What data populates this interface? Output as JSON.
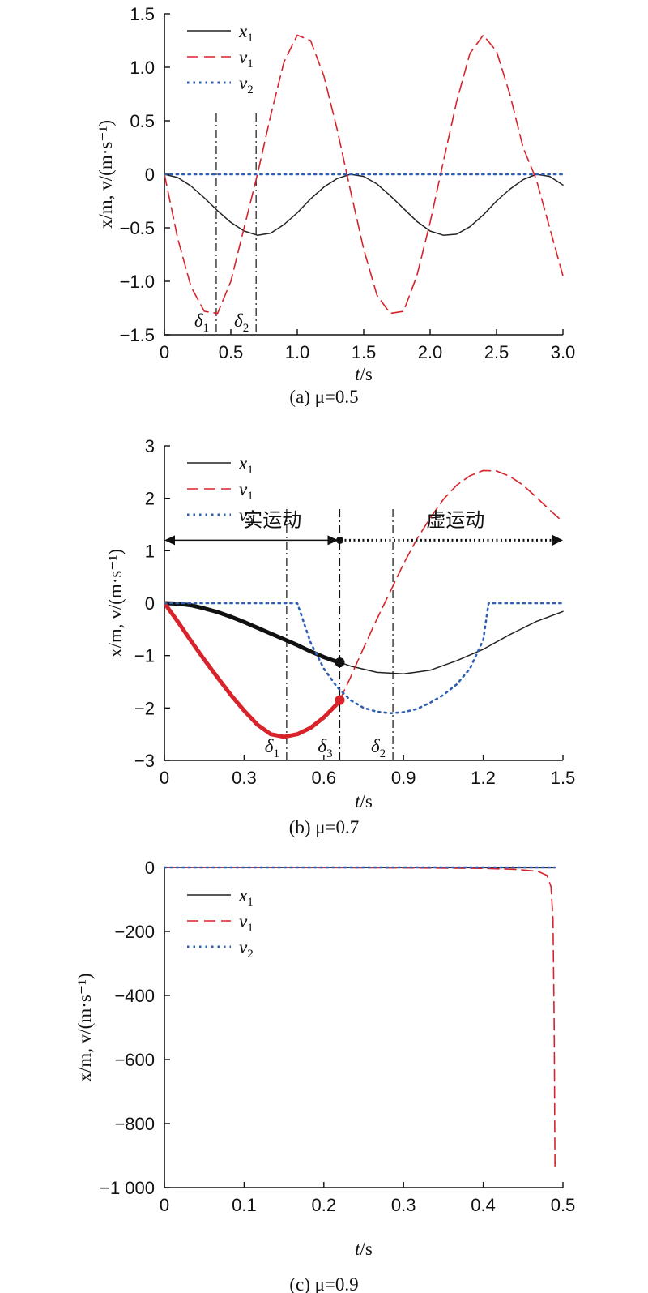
{
  "chart_data": [
    {
      "type": "line",
      "caption": "(a) μ=0.5",
      "xlabel": "t/s",
      "ylabel": "x/m, v/(m·s⁻¹)",
      "xlim": [
        0,
        3.0
      ],
      "ylim": [
        -1.5,
        1.5
      ],
      "xticks": [
        0,
        0.5,
        1.0,
        1.5,
        2.0,
        2.5,
        3.0
      ],
      "xtick_labels": [
        "0",
        "0.5",
        "1.0",
        "1.5",
        "2.0",
        "2.5",
        "3.0"
      ],
      "yticks": [
        -1.5,
        -1.0,
        -0.5,
        0,
        0.5,
        1.0,
        1.5
      ],
      "ytick_labels": [
        "−1.5",
        "−1.0",
        "−0.5",
        "0",
        "0.5",
        "1.0",
        "1.5"
      ],
      "legend_position": "top-left",
      "grid": false,
      "series": [
        {
          "name": "x1",
          "style": "solid",
          "color": "#222222",
          "x": [
            0,
            0.1,
            0.2,
            0.3,
            0.4,
            0.5,
            0.6,
            0.7,
            0.8,
            0.9,
            1.0,
            1.1,
            1.2,
            1.3,
            1.4,
            1.5,
            1.6,
            1.7,
            1.8,
            1.9,
            2.0,
            2.1,
            2.2,
            2.3,
            2.4,
            2.5,
            2.6,
            2.7,
            2.8,
            2.9,
            3.0
          ],
          "y": [
            0,
            -0.03,
            -0.11,
            -0.22,
            -0.34,
            -0.45,
            -0.53,
            -0.57,
            -0.55,
            -0.47,
            -0.36,
            -0.23,
            -0.12,
            -0.04,
            0,
            -0.02,
            -0.09,
            -0.2,
            -0.32,
            -0.44,
            -0.53,
            -0.57,
            -0.56,
            -0.49,
            -0.38,
            -0.25,
            -0.14,
            -0.05,
            0,
            -0.02,
            -0.1
          ]
        },
        {
          "name": "v1",
          "style": "dashed",
          "color": "#d8232a",
          "x": [
            0,
            0.1,
            0.2,
            0.3,
            0.4,
            0.5,
            0.6,
            0.7,
            0.8,
            0.9,
            1.0,
            1.1,
            1.2,
            1.3,
            1.4,
            1.5,
            1.6,
            1.7,
            1.8,
            1.9,
            2.0,
            2.1,
            2.2,
            2.3,
            2.4,
            2.5,
            2.6,
            2.7,
            2.8,
            2.9,
            3.0
          ],
          "y": [
            0,
            -0.6,
            -1.05,
            -1.28,
            -1.3,
            -1.0,
            -0.5,
            0,
            0.55,
            1.05,
            1.3,
            1.25,
            0.92,
            0.42,
            -0.15,
            -0.7,
            -1.13,
            -1.3,
            -1.28,
            -0.95,
            -0.45,
            0.12,
            0.68,
            1.13,
            1.3,
            1.15,
            0.75,
            0.25,
            -0.05,
            -0.5,
            -0.95
          ]
        },
        {
          "name": "v2",
          "style": "dotted",
          "color": "#2f5fb3",
          "x": [
            0,
            3.0
          ],
          "y": [
            0,
            0
          ]
        }
      ],
      "markers": [],
      "vlines": [
        {
          "x": 0.39,
          "label": "δ1"
        },
        {
          "x": 0.69,
          "label": "δ2"
        }
      ]
    },
    {
      "type": "line",
      "caption": "(b) μ=0.7",
      "xlabel": "t/s",
      "ylabel": "x/m, v/(m·s⁻¹)",
      "xlim": [
        0,
        1.5
      ],
      "ylim": [
        -3,
        3
      ],
      "xticks": [
        0,
        0.3,
        0.6,
        0.9,
        1.2,
        1.5
      ],
      "xtick_labels": [
        "0",
        "0.3",
        "0.6",
        "0.9",
        "1.2",
        "1.5"
      ],
      "yticks": [
        -3,
        -2,
        -1,
        0,
        1,
        2,
        3
      ],
      "ytick_labels": [
        "−3",
        "−2",
        "−1",
        "0",
        "1",
        "2",
        "3"
      ],
      "legend_position": "top-left",
      "grid": false,
      "series": [
        {
          "name": "x1 (solid bold)",
          "style": "solid-bold",
          "color": "#111111",
          "x": [
            0,
            0.05,
            0.1,
            0.15,
            0.2,
            0.25,
            0.3,
            0.35,
            0.4,
            0.45,
            0.5,
            0.55,
            0.6,
            0.65,
            0.66
          ],
          "y": [
            0,
            -0.01,
            -0.04,
            -0.1,
            -0.17,
            -0.26,
            -0.36,
            -0.47,
            -0.58,
            -0.69,
            -0.8,
            -0.92,
            -1.03,
            -1.12,
            -1.13
          ]
        },
        {
          "name": "x1 (solid thin)",
          "style": "solid",
          "color": "#222222",
          "x": [
            0.66,
            0.7,
            0.8,
            0.9,
            1.0,
            1.1,
            1.2,
            1.3,
            1.4,
            1.5
          ],
          "y": [
            -1.13,
            -1.2,
            -1.32,
            -1.35,
            -1.28,
            -1.1,
            -0.88,
            -0.6,
            -0.35,
            -0.16
          ]
        },
        {
          "name": "v1 (solid bold)",
          "style": "solid-bold",
          "color": "#d8232a",
          "x": [
            0,
            0.05,
            0.1,
            0.15,
            0.2,
            0.25,
            0.3,
            0.35,
            0.4,
            0.45,
            0.5,
            0.55,
            0.6,
            0.65,
            0.66
          ],
          "y": [
            0,
            -0.35,
            -0.72,
            -1.08,
            -1.42,
            -1.75,
            -2.05,
            -2.32,
            -2.5,
            -2.55,
            -2.5,
            -2.38,
            -2.18,
            -1.92,
            -1.85
          ]
        },
        {
          "name": "v1 (dashed)",
          "style": "dashed",
          "color": "#d8232a",
          "x": [
            0.66,
            0.7,
            0.75,
            0.8,
            0.85,
            0.9,
            0.95,
            1.0,
            1.05,
            1.1,
            1.15,
            1.2,
            1.25,
            1.3,
            1.35,
            1.4,
            1.45,
            1.5
          ],
          "y": [
            -1.85,
            -1.42,
            -0.85,
            -0.3,
            0.22,
            0.75,
            1.22,
            1.62,
            1.98,
            2.25,
            2.43,
            2.53,
            2.52,
            2.42,
            2.25,
            2.02,
            1.78,
            1.55
          ]
        },
        {
          "name": "v2",
          "style": "dotted",
          "color": "#2f5fb3",
          "x": [
            0,
            0.5,
            0.55,
            0.6,
            0.65,
            0.7,
            0.75,
            0.8,
            0.85,
            0.9,
            0.95,
            1.0,
            1.05,
            1.1,
            1.15,
            1.2,
            1.22,
            1.5
          ],
          "y": [
            0,
            0,
            -0.75,
            -1.25,
            -1.6,
            -1.85,
            -2.0,
            -2.07,
            -2.1,
            -2.08,
            -2.02,
            -1.9,
            -1.75,
            -1.55,
            -1.25,
            -0.7,
            0,
            0
          ]
        }
      ],
      "markers": [
        {
          "x": 0.66,
          "y": -1.13,
          "color": "#111111"
        },
        {
          "x": 0.66,
          "y": -1.85,
          "color": "#d8232a"
        }
      ],
      "vlines": [
        {
          "x": 0.46,
          "label": "δ1"
        },
        {
          "x": 0.66,
          "label": "δ3"
        },
        {
          "x": 0.86,
          "label": "δ2"
        }
      ],
      "arrows": {
        "y": 1.2,
        "x_start": 0,
        "x_split": 0.66,
        "x_end": 1.5,
        "left_label": "实运动",
        "right_label": "虚运动"
      }
    },
    {
      "type": "line",
      "caption": "(c) μ=0.9",
      "xlabel": "t/s",
      "ylabel": "x/m, v/(m·s⁻¹)",
      "xlim": [
        0,
        0.5
      ],
      "ylim": [
        -1000,
        0
      ],
      "xticks": [
        0,
        0.1,
        0.2,
        0.3,
        0.4,
        0.5
      ],
      "xtick_labels": [
        "0",
        "0.1",
        "0.2",
        "0.3",
        "0.4",
        "0.5"
      ],
      "yticks": [
        -1000,
        -800,
        -600,
        -400,
        -200,
        0
      ],
      "ytick_labels": [
        "−1 000",
        "−800",
        "−600",
        "−400",
        "−200",
        "0"
      ],
      "legend_position": "upper-left",
      "grid": false,
      "series": [
        {
          "name": "x1",
          "style": "solid",
          "color": "#222222",
          "x": [
            0,
            0.49
          ],
          "y": [
            0,
            -1
          ]
        },
        {
          "name": "v1",
          "style": "dashed",
          "color": "#d8232a",
          "x": [
            0,
            0.1,
            0.2,
            0.3,
            0.4,
            0.44,
            0.46,
            0.47,
            0.48,
            0.485,
            0.4875,
            0.489,
            0.49
          ],
          "y": [
            0,
            -0.3,
            -0.8,
            -1.5,
            -3,
            -6,
            -10,
            -14,
            -25,
            -60,
            -160,
            -500,
            -950
          ]
        },
        {
          "name": "v2",
          "style": "dotted",
          "color": "#2f5fb3",
          "x": [
            0,
            0.49
          ],
          "y": [
            0,
            0
          ]
        }
      ],
      "markers": [],
      "vlines": []
    }
  ],
  "legend_labels": {
    "x1": {
      "var": "x",
      "sub": "1"
    },
    "v1": {
      "var": "v",
      "sub": "1"
    },
    "v2": {
      "var": "v",
      "sub": "2"
    }
  }
}
